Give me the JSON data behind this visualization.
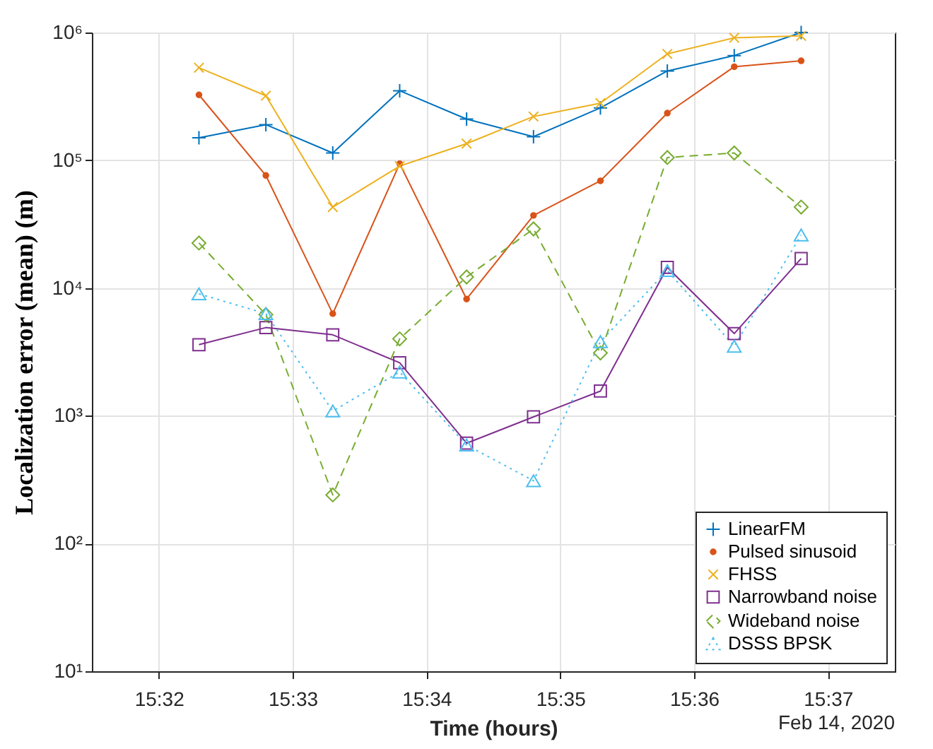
{
  "chart_data": {
    "type": "line",
    "xlabel": "Time (hours)",
    "ylabel": "Localization error (mean) (m)",
    "annotations": [
      "Feb 14, 2020"
    ],
    "x": [
      "2020-02-14T15:32:18",
      "2020-02-14T15:32:48",
      "2020-02-14T15:33:18",
      "2020-02-14T15:33:48",
      "2020-02-14T15:34:18",
      "2020-02-14T15:34:48",
      "2020-02-14T15:35:18",
      "2020-02-14T15:35:48",
      "2020-02-14T15:36:18",
      "2020-02-14T15:36:48"
    ],
    "series": [
      {
        "name": "LinearFM",
        "color": "#0072bd",
        "marker": "cross",
        "line_style": "solid",
        "values": [
          150000,
          190000,
          114000,
          350000,
          210000,
          153000,
          257000,
          500000,
          660000,
          1000000
        ]
      },
      {
        "name": "Pulsed sinusoid",
        "color": "#d95319",
        "marker": "circle",
        "line_style": "solid",
        "values": [
          325000,
          76000,
          6300,
          94000,
          8200,
          37000,
          69000,
          234000,
          540000,
          600000
        ]
      },
      {
        "name": "FHSS",
        "color": "#edb120",
        "marker": "x",
        "line_style": "solid",
        "values": [
          530000,
          320000,
          43000,
          90000,
          135000,
          220000,
          280000,
          680000,
          910000,
          940000
        ]
      },
      {
        "name": "Narrowband noise",
        "color": "#7e2f8e",
        "marker": "square",
        "line_style": "solid",
        "values": [
          3600,
          4900,
          4300,
          2600,
          610,
          980,
          1560,
          14500,
          4400,
          17000
        ]
      },
      {
        "name": "Wideband noise",
        "color": "#77ac30",
        "marker": "diamond",
        "line_style": "dashed",
        "values": [
          22500,
          6200,
          240,
          4000,
          12200,
          29000,
          3100,
          105000,
          114000,
          43000
        ]
      },
      {
        "name": "DSSS BPSK",
        "color": "#4dbeee",
        "marker": "triangle",
        "line_style": "dotted",
        "values": [
          9000,
          6300,
          1090,
          2200,
          590,
          310,
          3800,
          13700,
          3500,
          26000
        ]
      }
    ],
    "log": "y",
    "xlim": [
      "2020-02-14T15:31:30",
      "2020-02-14T15:37:30"
    ],
    "xticks": [
      {
        "value": "2020-02-14T15:32",
        "label": "15:32"
      },
      {
        "value": "2020-02-14T15:33",
        "label": "15:33"
      },
      {
        "value": "2020-02-14T15:34",
        "label": "15:34"
      },
      {
        "value": "2020-02-14T15:35",
        "label": "15:35"
      },
      {
        "value": "2020-02-14T15:36",
        "label": "15:36"
      },
      {
        "value": "2020-02-14T15:37",
        "label": "15:37"
      }
    ],
    "ylim": [
      10,
      1000000
    ],
    "yticks": [
      {
        "value": 10,
        "label": "10¹"
      },
      {
        "value": 100,
        "label": "10²"
      },
      {
        "value": 1000,
        "label": "10³"
      },
      {
        "value": 10000,
        "label": "10⁴"
      },
      {
        "value": 100000,
        "label": "10⁵"
      },
      {
        "value": 1000000,
        "label": "10⁶"
      }
    ],
    "grid": true,
    "legend": "bottom right"
  }
}
